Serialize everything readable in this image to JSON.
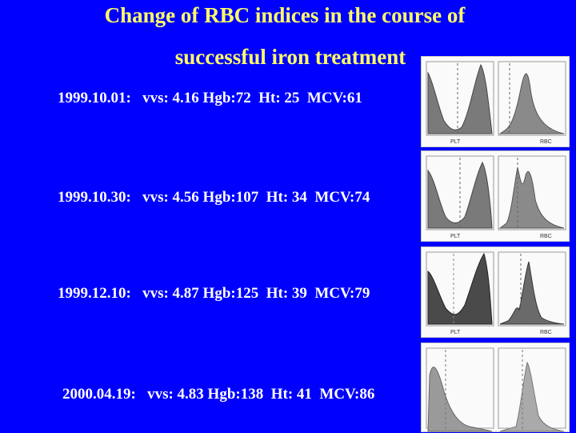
{
  "title": {
    "line1": "Change of RBC indices in the course of",
    "line2": "successful iron treatment"
  },
  "rows": [
    {
      "text": "1999.10.01:   vvs: 4.16 Hgb:72  Ht: 25  MCV:61"
    },
    {
      "text": "1999.10.30:   vvs: 4.56 Hgb:107  Ht: 34  MCV:74"
    },
    {
      "text": "1999.12.10:   vvs: 4.87 Hgb:125  Ht: 39  MCV:79"
    },
    {
      "text": "2000.04.19:   vvs: 4.83 Hgb:138  Ht: 41  MCV:86"
    }
  ],
  "histogram_labels": {
    "plt": "PLT",
    "rbc": "RBC"
  },
  "colors": {
    "background": "#0000ff",
    "title": "#ffff66",
    "text": "#ffffff"
  }
}
